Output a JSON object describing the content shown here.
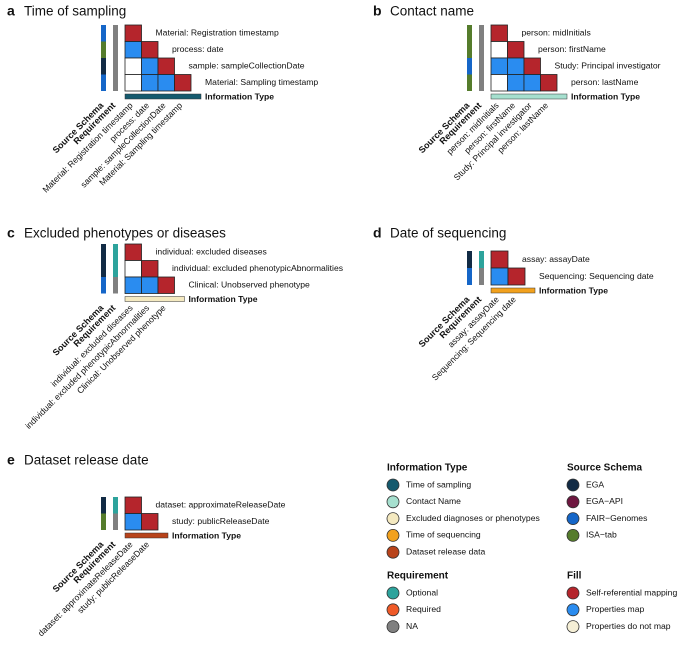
{
  "colors": {
    "self_referential": "#B5252C",
    "properties_map": "#2A8CF0",
    "no_map": "#FFFFFF",
    "requirement_optional": "#2DA39C",
    "requirement_na": "#808080",
    "schema_ega": "#122B45",
    "schema_fair_genomes": "#1566C8",
    "schema_isa_tab": "#557C2C",
    "type_time_of_sampling": "#155A6E",
    "type_contact_name": "#A6E0CF",
    "type_excluded": "#F4E9C0",
    "type_time_of_sequencing": "#F2A11D",
    "type_release": "#B8431A"
  },
  "common": {
    "source_schema": "Source Schema",
    "requirement": "Requirement",
    "information_type": "Information Type"
  },
  "chart_data": [
    {
      "letter": "a",
      "type": "heatmap",
      "title": "Time of sampling",
      "labels": [
        "Material: Registration timestamp",
        "process: date",
        "sample: sampleCollectionDate",
        "Material: Sampling timestamp"
      ],
      "schema": [
        "fair_genomes",
        "isa_tab",
        "ega",
        "fair_genomes"
      ],
      "requirement": [
        "na",
        "na",
        "na",
        "na"
      ],
      "info_type": "time_of_sampling",
      "matrix": [
        [
          "S"
        ],
        [
          "M",
          "S"
        ],
        [
          "N",
          "M",
          "S"
        ],
        [
          "N",
          "M",
          "M",
          "S"
        ]
      ]
    },
    {
      "letter": "b",
      "type": "heatmap",
      "title": "Contact name",
      "labels": [
        "person: midInitials",
        "person: firstName",
        "Study: Principal investigator",
        "person: lastName"
      ],
      "schema": [
        "isa_tab",
        "isa_tab",
        "fair_genomes",
        "isa_tab"
      ],
      "requirement": [
        "na",
        "na",
        "na",
        "na"
      ],
      "info_type": "contact_name",
      "matrix": [
        [
          "S"
        ],
        [
          "N",
          "S"
        ],
        [
          "M",
          "M",
          "S"
        ],
        [
          "N",
          "M",
          "M",
          "S"
        ]
      ]
    },
    {
      "letter": "c",
      "type": "heatmap",
      "title": "Excluded phenotypes or diseases",
      "labels": [
        "individual: excluded diseases",
        "individual: excluded phenotypicAbnormalities",
        "Clinical: Unobserved phenotype"
      ],
      "schema": [
        "ega",
        "ega",
        "fair_genomes"
      ],
      "requirement": [
        "optional",
        "optional",
        "na"
      ],
      "info_type": "excluded",
      "matrix": [
        [
          "S"
        ],
        [
          "N",
          "S"
        ],
        [
          "M",
          "M",
          "S"
        ]
      ]
    },
    {
      "letter": "d",
      "type": "heatmap",
      "title": "Date of sequencing",
      "labels": [
        "assay: assayDate",
        "Sequencing: Sequencing date"
      ],
      "schema": [
        "ega",
        "fair_genomes"
      ],
      "requirement": [
        "optional",
        "na"
      ],
      "info_type": "time_of_sequencing",
      "matrix": [
        [
          "S"
        ],
        [
          "M",
          "S"
        ]
      ]
    },
    {
      "letter": "e",
      "type": "heatmap",
      "title": "Dataset release date",
      "labels": [
        "dataset: approximateReleaseDate",
        "study: publicReleaseDate"
      ],
      "schema": [
        "ega",
        "isa_tab"
      ],
      "requirement": [
        "optional",
        "na"
      ],
      "info_type": "release",
      "matrix": [
        [
          "S"
        ],
        [
          "M",
          "S"
        ]
      ]
    }
  ],
  "legend": {
    "info_type": {
      "title": "Information Type",
      "items": [
        {
          "label": "Time of sampling",
          "color": "#155A6E"
        },
        {
          "label": "Contact Name",
          "color": "#A6E0CF"
        },
        {
          "label": "Excluded diagnoses or phenotypes",
          "color": "#F4E9C0"
        },
        {
          "label": "Time of sequencing",
          "color": "#F2A11D"
        },
        {
          "label": "Dataset release data",
          "color": "#B8431A"
        }
      ]
    },
    "source_schema": {
      "title": "Source Schema",
      "items": [
        {
          "label": "EGA",
          "color": "#122B45"
        },
        {
          "label": "EGA−API",
          "color": "#6E1740"
        },
        {
          "label": "FAIR−Genomes",
          "color": "#1566C8"
        },
        {
          "label": "ISA−tab",
          "color": "#557C2C"
        }
      ]
    },
    "requirement": {
      "title": "Requirement",
      "items": [
        {
          "label": "Optional",
          "color": "#2DA39C"
        },
        {
          "label": "Required",
          "color": "#F05A28"
        },
        {
          "label": "NA",
          "color": "#808080"
        }
      ]
    },
    "fill": {
      "title": "Fill",
      "items": [
        {
          "label": "Self-referential mapping",
          "color": "#B5252C"
        },
        {
          "label": "Properties map",
          "color": "#2A8CF0"
        },
        {
          "label": "Properties do not map",
          "color": "#F5EFD6"
        }
      ]
    }
  }
}
